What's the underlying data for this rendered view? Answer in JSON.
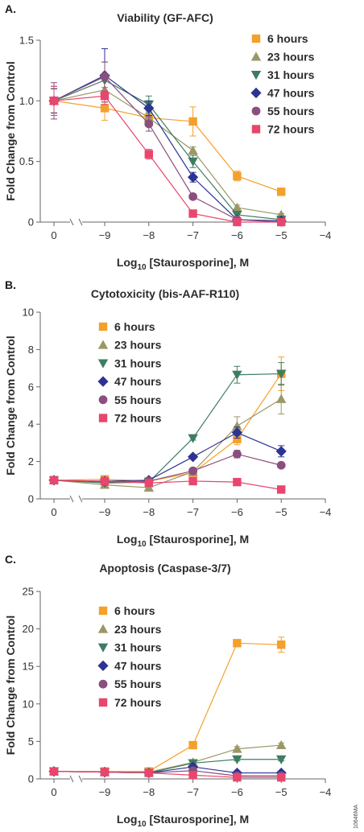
{
  "catalog_code": "10646MA",
  "chart_data": [
    {
      "panel_letter": "A.",
      "type": "line",
      "title": "Viability (GF-AFC)",
      "ylabel": "Fold Change from Control",
      "xlabel_prefix": "Log",
      "xlabel_subscript": "10",
      "xlabel_suffix": " [Staurosporine], M",
      "ylim": [
        0,
        1.5
      ],
      "yticks": [
        0,
        0.5,
        1.0,
        1.5
      ],
      "ytick_labels": [
        "0",
        "0.5",
        "1.0",
        "1.5"
      ],
      "xticks": [
        0,
        -9,
        -8,
        -7,
        -6,
        -5,
        -4
      ],
      "xtick_labels": [
        "0",
        "−9",
        "−8",
        "−7",
        "−6",
        "−5",
        "−4"
      ],
      "axis_break": true,
      "legend_position": "top-right",
      "x": [
        0,
        -9,
        -8,
        -7,
        -6,
        -5
      ],
      "series": [
        {
          "name": "6 hours",
          "color": "#f5a02a",
          "marker": "square",
          "values": [
            1.0,
            0.94,
            0.86,
            0.83,
            0.38,
            0.25
          ],
          "errors": [
            0.1,
            0.1,
            0.06,
            0.12,
            0.04,
            0.02
          ]
        },
        {
          "name": "23 hours",
          "color": "#9b9866",
          "marker": "triangle-up",
          "values": [
            1.0,
            1.09,
            0.86,
            0.59,
            0.12,
            0.06
          ],
          "errors": [
            0.1,
            0.08,
            0.05,
            0.03,
            0.02,
            0.01
          ]
        },
        {
          "name": "31 hours",
          "color": "#3e7d62",
          "marker": "triangle-down",
          "values": [
            1.0,
            1.17,
            0.97,
            0.5,
            0.06,
            0.02
          ],
          "errors": [
            0.12,
            0.15,
            0.07,
            0.05,
            0.02,
            0.01
          ]
        },
        {
          "name": "47 hours",
          "color": "#2d3393",
          "marker": "diamond",
          "values": [
            1.0,
            1.21,
            0.94,
            0.37,
            0.02,
            0.01
          ],
          "errors": [
            0.1,
            0.22,
            0.06,
            0.04,
            0.01,
            0.01
          ]
        },
        {
          "name": "55 hours",
          "color": "#8a4f7e",
          "marker": "circle",
          "values": [
            1.0,
            1.2,
            0.81,
            0.21,
            0.02,
            0.0
          ],
          "errors": [
            0.15,
            0.12,
            0.06,
            0.02,
            0.01,
            0.0
          ]
        },
        {
          "name": "72 hours",
          "color": "#e8466e",
          "marker": "square",
          "values": [
            1.0,
            1.04,
            0.56,
            0.07,
            0.0,
            0.0
          ],
          "errors": [
            0.12,
            0.07,
            0.04,
            0.02,
            0.0,
            0.0
          ]
        }
      ]
    },
    {
      "panel_letter": "B.",
      "type": "line",
      "title": "Cytotoxicity (bis-AAF-R110)",
      "ylabel": "Fold Change from Control",
      "xlabel_prefix": "Log",
      "xlabel_subscript": "10",
      "xlabel_suffix": " [Staurosporine], M",
      "ylim": [
        0,
        10
      ],
      "yticks": [
        0,
        2,
        4,
        6,
        8,
        10
      ],
      "ytick_labels": [
        "0",
        "2",
        "4",
        "6",
        "8",
        "10"
      ],
      "xticks": [
        0,
        -9,
        -8,
        -7,
        -6,
        -5,
        -4
      ],
      "xtick_labels": [
        "0",
        "−9",
        "−8",
        "−7",
        "−6",
        "−5",
        "−4"
      ],
      "axis_break": true,
      "legend_position": "top-left",
      "x": [
        0,
        -9,
        -8,
        -7,
        -6,
        -5
      ],
      "series": [
        {
          "name": "6 hours",
          "color": "#f5a02a",
          "marker": "square",
          "values": [
            1.0,
            1.05,
            0.95,
            1.4,
            3.2,
            6.7
          ],
          "errors": [
            0.2,
            0.15,
            0.1,
            0.1,
            0.3,
            0.9
          ]
        },
        {
          "name": "23 hours",
          "color": "#9b9866",
          "marker": "triangle-up",
          "values": [
            1.0,
            0.75,
            0.6,
            1.45,
            3.9,
            5.35
          ],
          "errors": [
            0.2,
            0.15,
            0.1,
            0.1,
            0.5,
            0.8
          ]
        },
        {
          "name": "31 hours",
          "color": "#3e7d62",
          "marker": "triangle-down",
          "values": [
            1.0,
            0.85,
            0.9,
            3.25,
            6.65,
            6.7
          ],
          "errors": [
            0.2,
            0.1,
            0.1,
            0.1,
            0.45,
            0.6
          ]
        },
        {
          "name": "47 hours",
          "color": "#2d3393",
          "marker": "diamond",
          "values": [
            1.0,
            0.95,
            1.0,
            2.25,
            3.55,
            2.55
          ],
          "errors": [
            0.2,
            0.1,
            0.1,
            0.1,
            0.3,
            0.3
          ]
        },
        {
          "name": "55 hours",
          "color": "#8a4f7e",
          "marker": "circle",
          "values": [
            1.0,
            0.9,
            0.95,
            1.5,
            2.4,
            1.8
          ],
          "errors": [
            0.2,
            0.1,
            0.1,
            0.1,
            0.2,
            0.1
          ]
        },
        {
          "name": "72 hours",
          "color": "#e8466e",
          "marker": "square",
          "values": [
            1.0,
            0.95,
            0.85,
            0.95,
            0.9,
            0.5
          ],
          "errors": [
            0.2,
            0.1,
            0.1,
            0.1,
            0.05,
            0.05
          ]
        }
      ]
    },
    {
      "panel_letter": "C.",
      "type": "line",
      "title": "Apoptosis (Caspase-3/7)",
      "ylabel": "Fold Change from Control",
      "xlabel_prefix": "Log",
      "xlabel_subscript": "10",
      "xlabel_suffix": " [Staurosporine], M",
      "ylim": [
        0,
        25
      ],
      "yticks": [
        0,
        5,
        10,
        15,
        20,
        25
      ],
      "ytick_labels": [
        "0",
        "5",
        "10",
        "15",
        "20",
        "25"
      ],
      "xticks": [
        0,
        -9,
        -8,
        -7,
        -6,
        -5,
        -4
      ],
      "xtick_labels": [
        "0",
        "−9",
        "−8",
        "−7",
        "−6",
        "−5",
        "−4"
      ],
      "axis_break": true,
      "legend_position": "top-left",
      "x": [
        0,
        -9,
        -8,
        -7,
        -6,
        -5
      ],
      "series": [
        {
          "name": "6 hours",
          "color": "#f5a02a",
          "marker": "square",
          "values": [
            1.0,
            1.0,
            1.0,
            4.5,
            18.1,
            17.9
          ],
          "errors": [
            0.2,
            0.1,
            0.1,
            0.3,
            0.4,
            1.0
          ]
        },
        {
          "name": "23 hours",
          "color": "#9b9866",
          "marker": "triangle-up",
          "values": [
            1.0,
            0.9,
            0.9,
            2.2,
            4.0,
            4.5
          ],
          "errors": [
            0.2,
            0.1,
            0.1,
            0.2,
            0.3,
            0.3
          ]
        },
        {
          "name": "31 hours",
          "color": "#3e7d62",
          "marker": "triangle-down",
          "values": [
            1.0,
            0.9,
            0.8,
            2.1,
            2.6,
            2.6
          ],
          "errors": [
            0.2,
            0.1,
            0.1,
            0.2,
            0.2,
            0.2
          ]
        },
        {
          "name": "47 hours",
          "color": "#2d3393",
          "marker": "diamond",
          "values": [
            1.0,
            0.9,
            0.8,
            1.6,
            0.8,
            0.8
          ],
          "errors": [
            0.2,
            0.1,
            0.1,
            0.1,
            0.1,
            0.1
          ]
        },
        {
          "name": "55 hours",
          "color": "#8a4f7e",
          "marker": "circle",
          "values": [
            1.0,
            0.9,
            0.8,
            1.1,
            0.4,
            0.4
          ],
          "errors": [
            0.2,
            0.1,
            0.1,
            0.1,
            0.1,
            0.1
          ]
        },
        {
          "name": "72 hours",
          "color": "#e8466e",
          "marker": "square",
          "values": [
            1.0,
            0.9,
            0.8,
            0.5,
            0.2,
            0.2
          ],
          "errors": [
            0.2,
            0.1,
            0.1,
            0.1,
            0.05,
            0.05
          ]
        }
      ]
    }
  ]
}
